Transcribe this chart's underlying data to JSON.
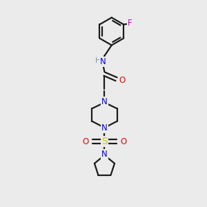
{
  "bg_color": "#ebebeb",
  "bond_color": "#1a1a1a",
  "N_color": "#0000ee",
  "O_color": "#ee0000",
  "S_color": "#cccc00",
  "F_color": "#cc00cc",
  "H_color": "#6a9a9a",
  "line_width": 1.6,
  "font_size": 8.5,
  "figsize": [
    3.0,
    3.0
  ],
  "dpi": 100,
  "xlim": [
    0,
    10
  ],
  "ylim": [
    0,
    10
  ]
}
